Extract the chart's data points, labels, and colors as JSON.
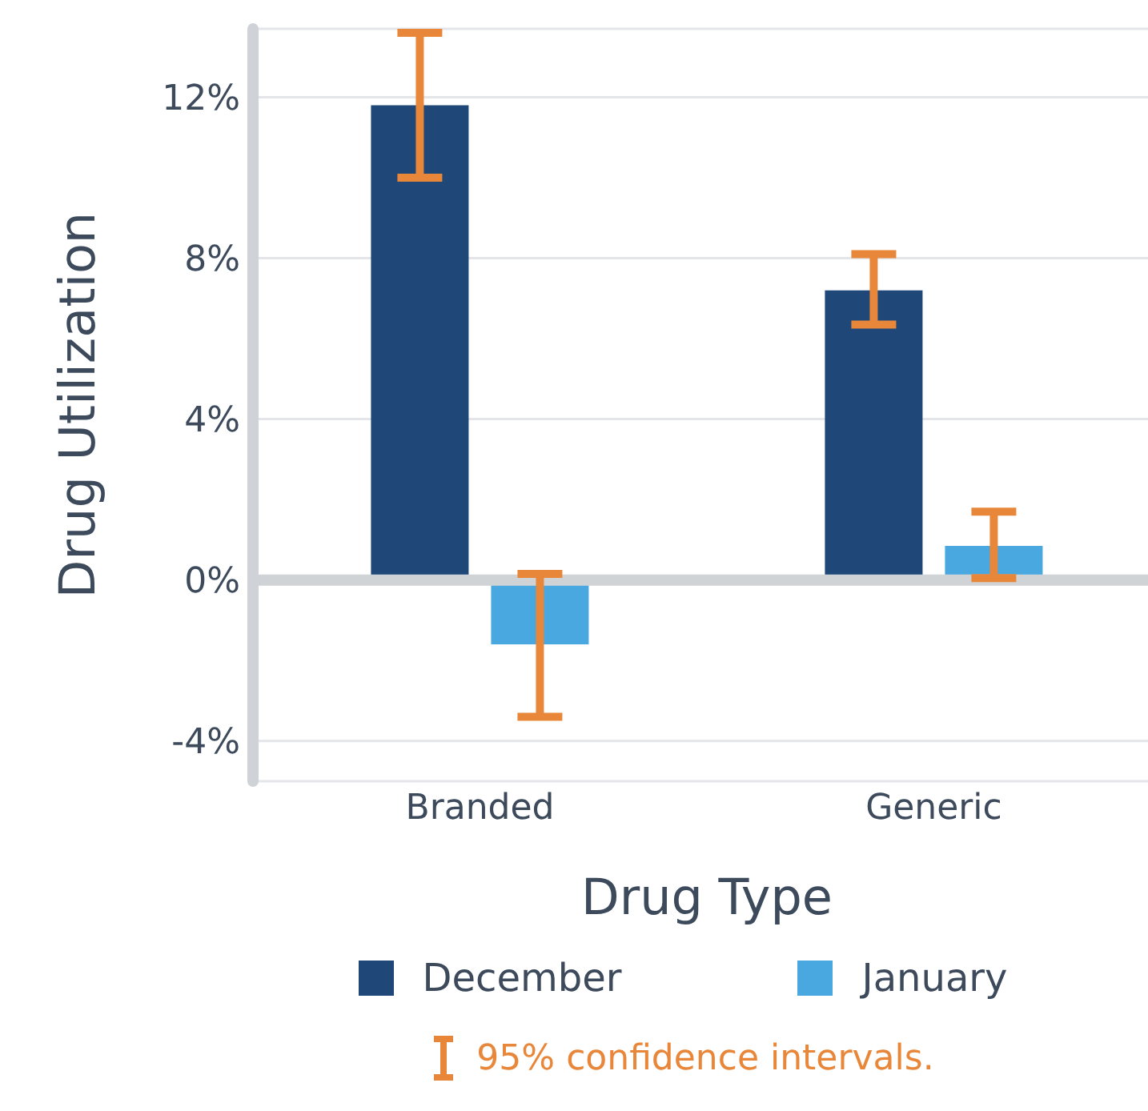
{
  "chart_data": {
    "type": "bar",
    "xlabel": "Drug Type",
    "ylabel": "Drug Utilization",
    "categories": [
      "Branded",
      "Generic"
    ],
    "series": [
      {
        "name": "December",
        "color": "#1f4777",
        "values": [
          11.8,
          7.2
        ],
        "errors": [
          [
            10.0,
            13.6
          ],
          [
            6.35,
            8.1
          ]
        ]
      },
      {
        "name": "January",
        "color": "#4aa8e0",
        "values": [
          -1.6,
          0.85
        ],
        "errors": [
          [
            -3.4,
            0.15
          ],
          [
            0.05,
            1.7
          ]
        ]
      }
    ],
    "ylim": [
      -5,
      13.7
    ],
    "yticks": [
      {
        "value": -4,
        "label": "-4%"
      },
      {
        "value": 0,
        "label": "0%"
      },
      {
        "value": 4,
        "label": "4%"
      },
      {
        "value": 8,
        "label": "8%"
      },
      {
        "value": 12,
        "label": "12%"
      }
    ],
    "grid": "y",
    "legend": "bottom",
    "ref_lines": [
      {
        "axis": "y",
        "value": 0,
        "color": "#d0d3d6"
      }
    ],
    "annotations": [
      "95% confidence intervals."
    ]
  }
}
